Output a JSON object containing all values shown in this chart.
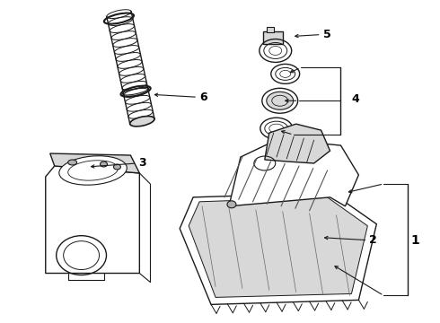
{
  "bg_color": "#ffffff",
  "line_color": "#1a1a1a",
  "label_color": "#000000",
  "figsize": [
    4.9,
    3.6
  ],
  "dpi": 100,
  "gray_fill": "#b0b0b0",
  "light_gray": "#d8d8d8",
  "hose_color": "#888888"
}
